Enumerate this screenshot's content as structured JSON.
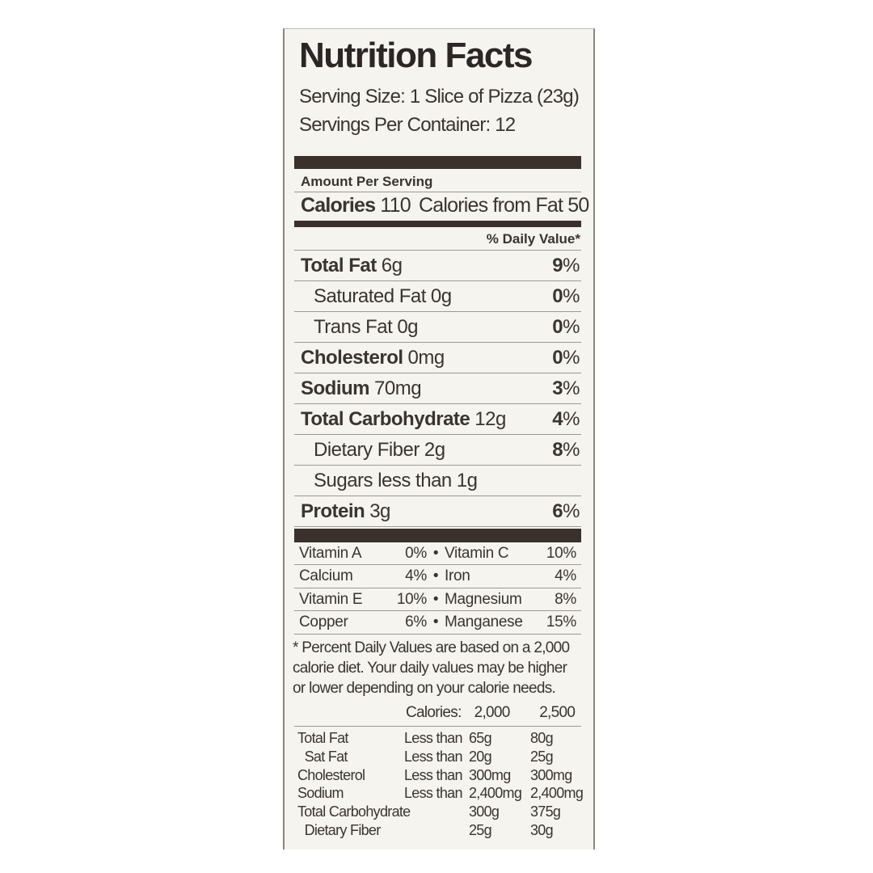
{
  "title": "Nutrition Facts",
  "serving_size": "Serving Size: 1 Slice of Pizza (23g)",
  "servings_per_container": "Servings Per Container: 12",
  "amount_per_serving": "Amount Per Serving",
  "calories": {
    "label": "Calories",
    "value": "110",
    "from_fat": "Calories from Fat 50"
  },
  "daily_value_header": "% Daily Value*",
  "nutrients": [
    {
      "name": "Total Fat",
      "amount": "6g",
      "pct": "9",
      "bold": true,
      "indent": false
    },
    {
      "name": "Saturated Fat",
      "amount": "0g",
      "pct": "0",
      "bold": false,
      "indent": true
    },
    {
      "name": "Trans Fat",
      "amount": "0g",
      "pct": "0",
      "bold": false,
      "indent": true
    },
    {
      "name": "Cholesterol",
      "amount": "0mg",
      "pct": "0",
      "bold": true,
      "indent": false
    },
    {
      "name": "Sodium",
      "amount": "70mg",
      "pct": "3",
      "bold": true,
      "indent": false
    },
    {
      "name": "Total Carbohydrate",
      "amount": "12g",
      "pct": "4",
      "bold": true,
      "indent": false
    },
    {
      "name": "Dietary Fiber",
      "amount": "2g",
      "pct": "8",
      "bold": false,
      "indent": true
    },
    {
      "name": "Sugars less than",
      "amount": "1g",
      "pct": "",
      "bold": false,
      "indent": true
    },
    {
      "name": "Protein",
      "amount": "3g",
      "pct": "6",
      "bold": true,
      "indent": false
    }
  ],
  "vitamins": [
    {
      "n1": "Vitamin A",
      "v1": "0%",
      "n2": "Vitamin C",
      "v2": "10%"
    },
    {
      "n1": "Calcium",
      "v1": "4%",
      "n2": "Iron",
      "v2": "4%"
    },
    {
      "n1": "Vitamin E",
      "v1": "10%",
      "n2": "Magnesium",
      "v2": "8%"
    },
    {
      "n1": "Copper",
      "v1": "6%",
      "n2": "Manganese",
      "v2": "15%"
    }
  ],
  "footnote": [
    "* Percent Daily Values are based on a 2,000",
    "calorie diet. Your daily values may be higher",
    "or lower depending on your calorie needs."
  ],
  "calorie_header": {
    "label": "Calories:",
    "c1": "2,000",
    "c2": "2,500"
  },
  "reference": [
    {
      "name": "Total Fat",
      "cond": "Less than",
      "a": "65g",
      "b": "80g"
    },
    {
      "name": "  Sat Fat",
      "cond": "Less than",
      "a": "20g",
      "b": "25g"
    },
    {
      "name": "Cholesterol",
      "cond": "Less than",
      "a": "300mg",
      "b": "300mg"
    },
    {
      "name": "Sodium",
      "cond": "Less than",
      "a": "2,400mg",
      "b": "2,400mg"
    },
    {
      "name": "Total Carbohydrate",
      "cond": "",
      "a": "300g",
      "b": "375g"
    },
    {
      "name": "  Dietary Fiber",
      "cond": "",
      "a": "25g",
      "b": "30g"
    }
  ]
}
